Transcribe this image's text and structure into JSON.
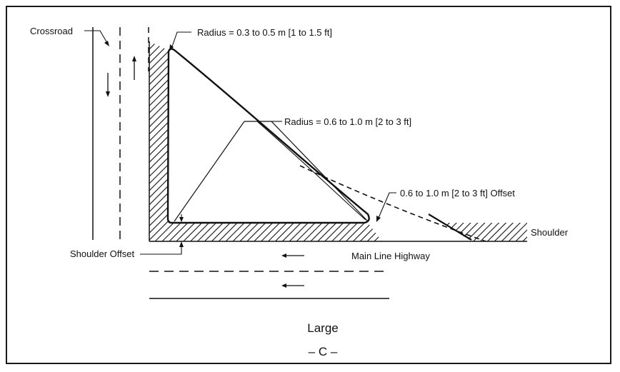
{
  "labels": {
    "crossroad": "Crossroad",
    "radius_small": "Radius = 0.3 to 0.5 m [1 to 1.5 ft]",
    "radius_mid": "Radius = 0.6 to 1.0 m [2 to 3 ft]",
    "offset": "0.6 to 1.0 m [2 to 3 ft] Offset",
    "shoulder": "Shoulder",
    "shoulder_offset": "Shoulder Offset",
    "main_line": "Main Line Highway",
    "size": "Large",
    "figure_letter": "– C –"
  }
}
